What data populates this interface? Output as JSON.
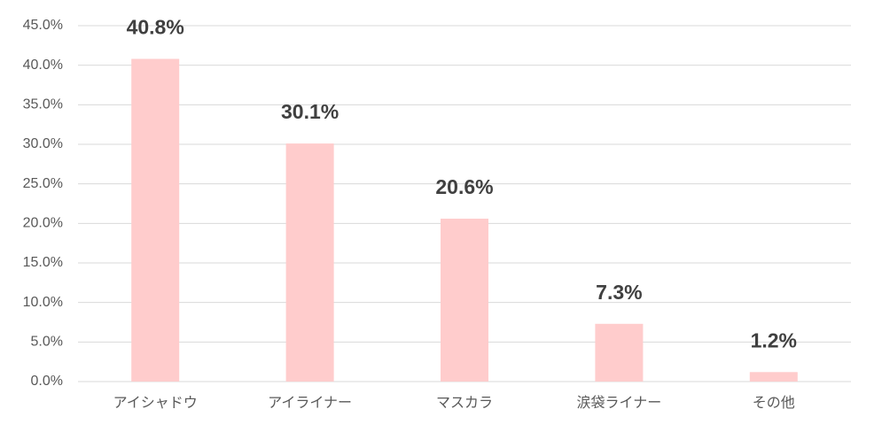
{
  "chart_data": {
    "type": "bar",
    "categories": [
      "アイシャドウ",
      "アイライナー",
      "マスカラ",
      "涙袋ライナー",
      "その他"
    ],
    "values": [
      40.8,
      30.1,
      20.6,
      7.3,
      1.2
    ],
    "value_labels": [
      "40.8%",
      "30.1%",
      "20.6%",
      "7.3%",
      "1.2%"
    ],
    "color": "#ffcccc",
    "ylim": [
      0,
      45
    ],
    "yticks": [
      {
        "value": 0,
        "label": "0.0%"
      },
      {
        "value": 5,
        "label": "5.0%"
      },
      {
        "value": 10,
        "label": "10.0%"
      },
      {
        "value": 15,
        "label": "15.0%"
      },
      {
        "value": 20,
        "label": "20.0%"
      },
      {
        "value": 25,
        "label": "25.0%"
      },
      {
        "value": 30,
        "label": "30.0%"
      },
      {
        "value": 35,
        "label": "35.0%"
      },
      {
        "value": 40,
        "label": "40.0%"
      },
      {
        "value": 45,
        "label": "45.0%"
      }
    ],
    "grid": true
  }
}
